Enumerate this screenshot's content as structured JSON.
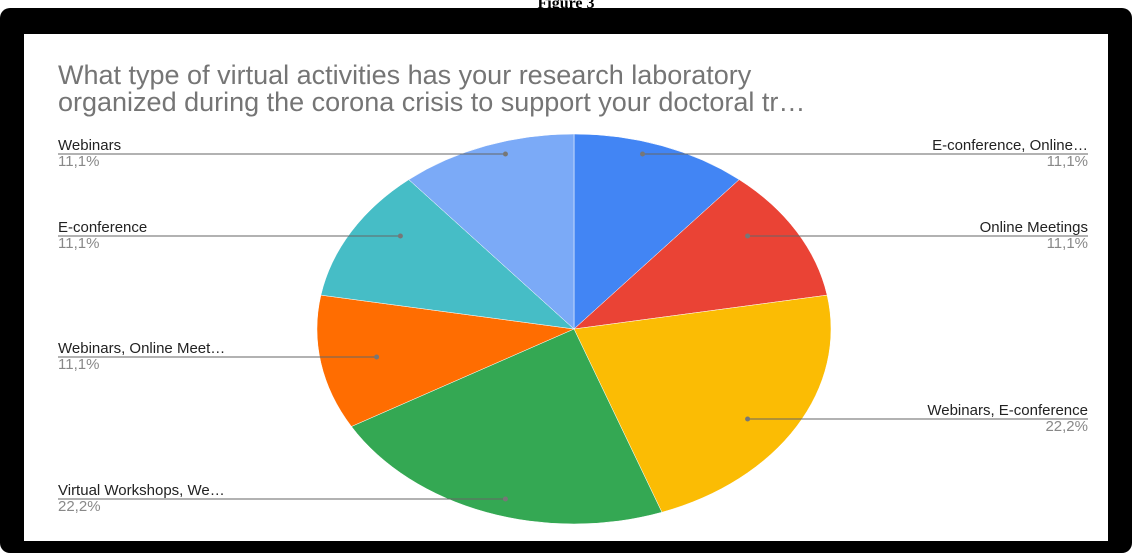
{
  "figure_caption": "Figure 3",
  "chart_data": {
    "type": "pie",
    "title": "What type of virtual activities has your research laboratory\norganized during the corona crisis to support your doctoral tr…",
    "slices": [
      {
        "label": "E-conference, Online…",
        "percent_label": "11,1%",
        "value": 11.1,
        "color": "#4285F4"
      },
      {
        "label": "Online Meetings",
        "percent_label": "11,1%",
        "value": 11.1,
        "color": "#EA4335"
      },
      {
        "label": "Webinars, E-conference",
        "percent_label": "22,2%",
        "value": 22.2,
        "color": "#FBBC04"
      },
      {
        "label": "Virtual Workshops, We…",
        "percent_label": "22,2%",
        "value": 22.2,
        "color": "#34A853"
      },
      {
        "label": "Webinars, Online Meet…",
        "percent_label": "11,1%",
        "value": 11.1,
        "color": "#FF6D01"
      },
      {
        "label": "E-conference",
        "percent_label": "11,1%",
        "value": 11.1,
        "color": "#46BDC6"
      },
      {
        "label": "Webinars",
        "percent_label": "11,1%",
        "value": 11.1,
        "color": "#7BAAF7"
      }
    ],
    "legend": "labels beside slices",
    "start": "12 o'clock, clockwise"
  }
}
